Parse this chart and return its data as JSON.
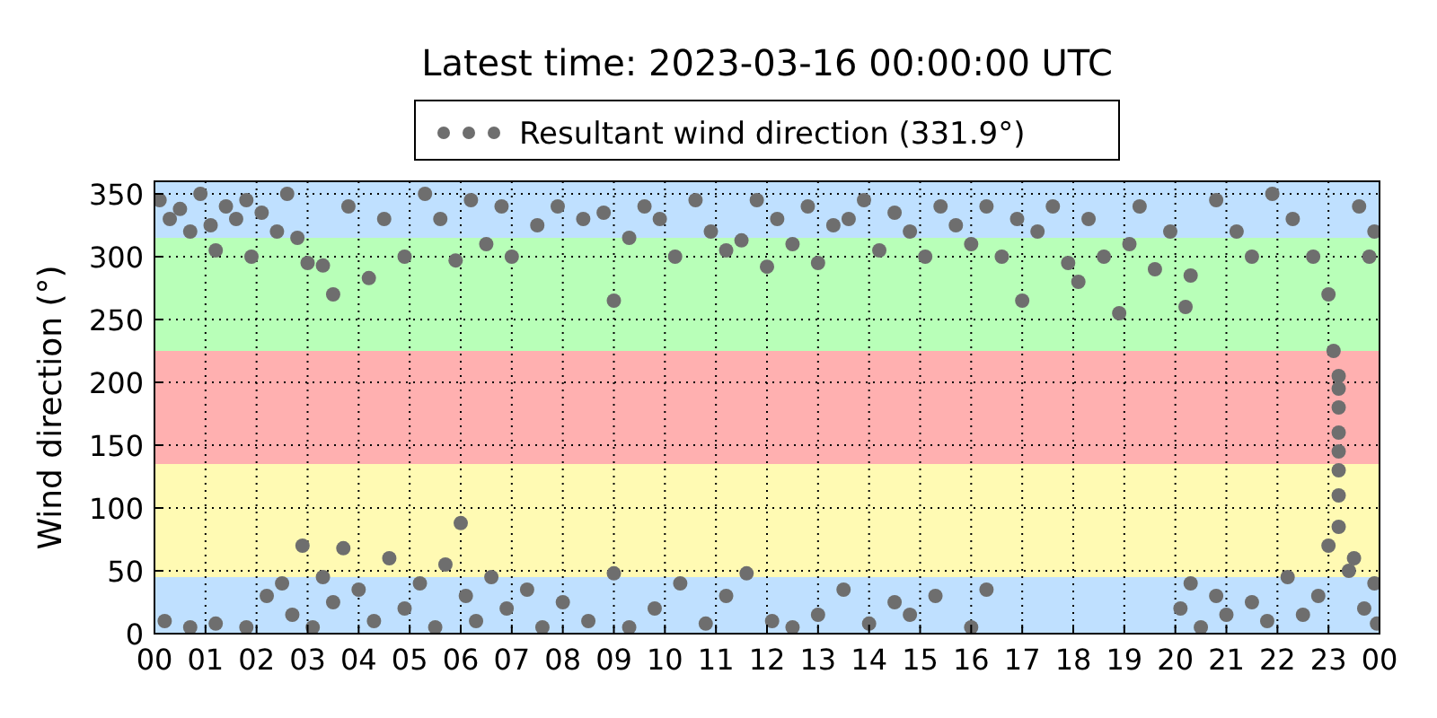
{
  "chart_data": {
    "type": "scatter",
    "title": "Latest time: 2023-03-16 00:00:00 UTC",
    "ylabel": "Wind direction (°)",
    "xlim": [
      0,
      24
    ],
    "xticks": [
      {
        "value": 0,
        "label": "00"
      },
      {
        "value": 1,
        "label": "01"
      },
      {
        "value": 2,
        "label": "02"
      },
      {
        "value": 3,
        "label": "03"
      },
      {
        "value": 4,
        "label": "04"
      },
      {
        "value": 5,
        "label": "05"
      },
      {
        "value": 6,
        "label": "06"
      },
      {
        "value": 7,
        "label": "07"
      },
      {
        "value": 8,
        "label": "08"
      },
      {
        "value": 9,
        "label": "09"
      },
      {
        "value": 10,
        "label": "10"
      },
      {
        "value": 11,
        "label": "11"
      },
      {
        "value": 12,
        "label": "12"
      },
      {
        "value": 13,
        "label": "13"
      },
      {
        "value": 14,
        "label": "14"
      },
      {
        "value": 15,
        "label": "15"
      },
      {
        "value": 16,
        "label": "16"
      },
      {
        "value": 17,
        "label": "17"
      },
      {
        "value": 18,
        "label": "18"
      },
      {
        "value": 19,
        "label": "19"
      },
      {
        "value": 20,
        "label": "20"
      },
      {
        "value": 21,
        "label": "21"
      },
      {
        "value": 22,
        "label": "22"
      },
      {
        "value": 23,
        "label": "23"
      },
      {
        "value": 24,
        "label": "00"
      }
    ],
    "ylim": [
      0,
      360
    ],
    "yticks": [
      0,
      50,
      100,
      150,
      200,
      250,
      300,
      350
    ],
    "grid": true,
    "legend": "top",
    "marker": "circle",
    "bands": [
      {
        "axis": "y",
        "from": 0,
        "to": 45,
        "color": "#bfe0ff"
      },
      {
        "axis": "y",
        "from": 45,
        "to": 135,
        "color": "#fffab3"
      },
      {
        "axis": "y",
        "from": 135,
        "to": 225,
        "color": "#ffb0b0"
      },
      {
        "axis": "y",
        "from": 225,
        "to": 315,
        "color": "#b8ffb8"
      },
      {
        "axis": "y",
        "from": 315,
        "to": 360,
        "color": "#bfe0ff"
      }
    ],
    "series": [
      {
        "name": "Resultant wind direction (331.9°)",
        "color": "#6e6e6e",
        "x": [
          0.1,
          0.3,
          0.5,
          0.7,
          0.9,
          1.1,
          1.2,
          1.4,
          1.6,
          1.8,
          1.9,
          2.1,
          2.4,
          2.6,
          2.8,
          3.0,
          3.3,
          3.5,
          3.8,
          4.2,
          4.5,
          4.9,
          5.3,
          5.6,
          5.9,
          6.2,
          6.5,
          6.8,
          7.0,
          7.5,
          7.9,
          8.4,
          8.8,
          9.0,
          9.3,
          9.6,
          9.9,
          10.2,
          10.6,
          10.9,
          11.2,
          11.5,
          11.8,
          12.0,
          12.2,
          12.5,
          12.8,
          13.0,
          13.3,
          13.6,
          13.9,
          14.2,
          14.5,
          14.8,
          15.1,
          15.4,
          15.7,
          16.0,
          16.3,
          16.6,
          16.9,
          17.0,
          17.3,
          17.6,
          17.9,
          18.1,
          18.3,
          18.6,
          18.9,
          19.1,
          19.3,
          19.6,
          19.9,
          20.2,
          20.3,
          20.8,
          21.2,
          21.5,
          21.9,
          22.3,
          22.7,
          23.0,
          23.1,
          23.2,
          23.2,
          23.2,
          23.2,
          23.2,
          23.2,
          23.2,
          23.6,
          23.9,
          23.8,
          0.2,
          0.7,
          1.2,
          1.8,
          2.2,
          2.5,
          2.7,
          2.9,
          3.1,
          3.3,
          3.5,
          3.7,
          4.0,
          4.3,
          4.6,
          4.9,
          5.2,
          5.5,
          5.7,
          6.0,
          6.1,
          6.3,
          6.6,
          6.9,
          7.3,
          7.6,
          8.0,
          8.5,
          9.0,
          9.3,
          9.8,
          10.3,
          10.8,
          11.2,
          11.6,
          12.1,
          12.5,
          13.0,
          13.5,
          14.0,
          14.5,
          14.8,
          15.3,
          16.0,
          16.3,
          20.1,
          20.3,
          20.5,
          20.8,
          21.0,
          21.5,
          21.8,
          22.2,
          22.5,
          22.8,
          23.0,
          23.2,
          23.4,
          23.5,
          23.7,
          23.9,
          23.95
        ],
        "values": [
          345,
          330,
          338,
          320,
          350,
          325,
          305,
          340,
          330,
          345,
          300,
          335,
          320,
          350,
          315,
          295,
          293,
          270,
          340,
          283,
          330,
          300,
          350,
          330,
          297,
          345,
          310,
          340,
          300,
          325,
          340,
          330,
          335,
          265,
          315,
          340,
          330,
          300,
          345,
          320,
          305,
          313,
          345,
          292,
          330,
          310,
          340,
          295,
          325,
          330,
          345,
          305,
          335,
          320,
          300,
          340,
          325,
          310,
          340,
          300,
          330,
          265,
          320,
          340,
          295,
          280,
          330,
          300,
          255,
          310,
          340,
          290,
          320,
          260,
          285,
          345,
          320,
          300,
          350,
          330,
          300,
          270,
          225,
          205,
          195,
          180,
          160,
          145,
          130,
          110,
          340,
          320,
          300,
          10,
          5,
          8,
          5,
          30,
          40,
          15,
          70,
          5,
          45,
          25,
          68,
          35,
          10,
          60,
          20,
          40,
          5,
          55,
          88,
          30,
          10,
          45,
          20,
          35,
          5,
          25,
          10,
          48,
          5,
          20,
          40,
          8,
          30,
          48,
          10,
          5,
          15,
          35,
          8,
          25,
          15,
          30,
          5,
          35,
          20,
          40,
          5,
          30,
          15,
          25,
          10,
          45,
          15,
          30,
          70,
          85,
          50,
          60,
          20,
          40,
          8
        ]
      }
    ]
  }
}
